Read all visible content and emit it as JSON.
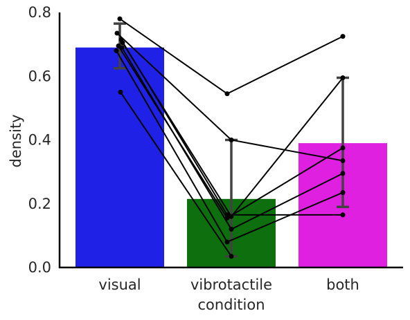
{
  "chart_data": {
    "type": "bar",
    "xlabel": "condition",
    "ylabel": "density",
    "ylim": [
      0,
      0.8
    ],
    "yticks": [
      "0.0",
      "0.2",
      "0.4",
      "0.6",
      "0.8"
    ],
    "categories": [
      "visual",
      "vibrotactile",
      "both"
    ],
    "values": [
      0.69,
      0.215,
      0.39
    ],
    "error_bars": [
      [
        0.625,
        0.765
      ],
      [
        0.035,
        0.4
      ],
      [
        0.19,
        0.595
      ]
    ],
    "bar_colors": [
      "#1f22e6",
      "#0e6f0e",
      "#e020e0"
    ],
    "errorbar_color": "#424242",
    "subject_lines": [
      [
        0.78,
        0.545,
        0.725
      ],
      [
        0.735,
        0.4,
        0.335
      ],
      [
        0.715,
        0.165,
        0.165
      ],
      [
        0.705,
        0.16,
        0.595
      ],
      [
        0.695,
        0.155,
        0.375
      ],
      [
        0.69,
        0.12,
        0.295
      ],
      [
        0.68,
        0.08,
        0.235
      ],
      [
        0.55,
        0.035,
        null
      ]
    ],
    "subject_color": "#000000",
    "grid": false,
    "legend": "none"
  }
}
